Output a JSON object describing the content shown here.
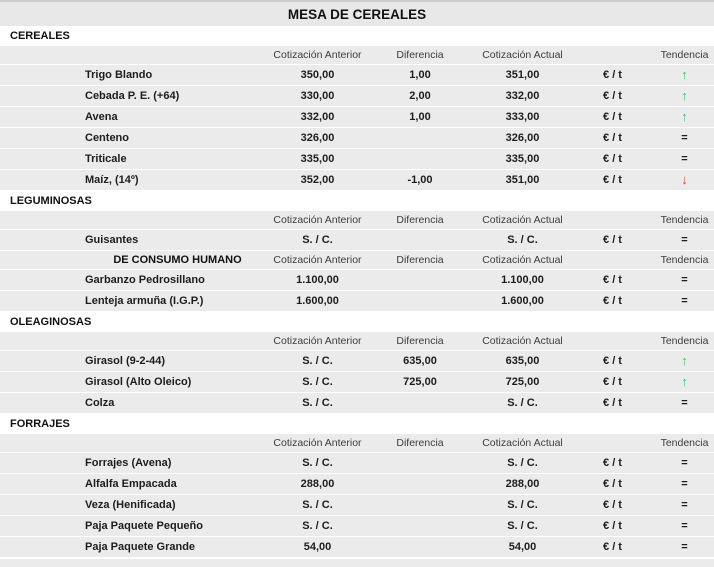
{
  "title": "MESA DE CEREALES",
  "columns": {
    "anterior": "Cotización Anterior",
    "diferencia": "Diferencia",
    "actual": "Cotización Actual",
    "unit": "",
    "tendencia": "Tendencia"
  },
  "unit_label": "€ / t",
  "trend_glyphs": {
    "up": "↑",
    "down": "↓",
    "eq": "="
  },
  "colors": {
    "trend_up": "#2ecc71",
    "trend_down": "#e2483d",
    "row_background": "#ebebeb",
    "title_background": "#e8e8e8"
  },
  "sections": [
    {
      "label": "CEREALES",
      "blocks": [
        {
          "sub_label": "",
          "rows": [
            {
              "name": "Trigo Blando",
              "anterior": "350,00",
              "diferencia": "1,00",
              "actual": "351,00",
              "unit": "€ / t",
              "trend": "up"
            },
            {
              "name": "Cebada P. E. (+64)",
              "anterior": "330,00",
              "diferencia": "2,00",
              "actual": "332,00",
              "unit": "€ / t",
              "trend": "up"
            },
            {
              "name": "Avena",
              "anterior": "332,00",
              "diferencia": "1,00",
              "actual": "333,00",
              "unit": "€ / t",
              "trend": "up"
            },
            {
              "name": "Centeno",
              "anterior": "326,00",
              "diferencia": "",
              "actual": "326,00",
              "unit": "€ / t",
              "trend": "eq"
            },
            {
              "name": "Triticale",
              "anterior": "335,00",
              "diferencia": "",
              "actual": "335,00",
              "unit": "€ / t",
              "trend": "eq"
            },
            {
              "name": "Maíz, (14º)",
              "anterior": "352,00",
              "diferencia": "-1,00",
              "actual": "351,00",
              "unit": "€ / t",
              "trend": "down"
            }
          ]
        }
      ]
    },
    {
      "label": "LEGUMINOSAS",
      "blocks": [
        {
          "sub_label": "",
          "rows": [
            {
              "name": "Guisantes",
              "anterior": "S. / C.",
              "diferencia": "",
              "actual": "S. / C.",
              "unit": "€ / t",
              "trend": "eq"
            }
          ]
        },
        {
          "sub_label": "DE CONSUMO HUMANO",
          "rows": [
            {
              "name": "Garbanzo Pedrosillano",
              "anterior": "1.100,00",
              "diferencia": "",
              "actual": "1.100,00",
              "unit": "€ / t",
              "trend": "eq"
            },
            {
              "name": "Lenteja armuña (I.G.P.)",
              "anterior": "1.600,00",
              "diferencia": "",
              "actual": "1.600,00",
              "unit": "€ / t",
              "trend": "eq"
            }
          ]
        }
      ]
    },
    {
      "label": "OLEAGINOSAS",
      "blocks": [
        {
          "sub_label": "",
          "rows": [
            {
              "name": "Girasol (9-2-44)",
              "anterior": "S. / C.",
              "diferencia": "635,00",
              "actual": "635,00",
              "unit": "€ / t",
              "trend": "up"
            },
            {
              "name": "Girasol (Alto Oleico)",
              "anterior": "S. / C.",
              "diferencia": "725,00",
              "actual": "725,00",
              "unit": "€ / t",
              "trend": "up"
            },
            {
              "name": "Colza",
              "anterior": "S. / C.",
              "diferencia": "",
              "actual": "S. / C.",
              "unit": "€ / t",
              "trend": "eq"
            }
          ]
        }
      ]
    },
    {
      "label": "FORRAJES",
      "blocks": [
        {
          "sub_label": "",
          "rows": [
            {
              "name": "Forrajes (Avena)",
              "anterior": "S. / C.",
              "diferencia": "",
              "actual": "S. / C.",
              "unit": "€ / t",
              "trend": "eq"
            },
            {
              "name": "Alfalfa Empacada",
              "anterior": "288,00",
              "diferencia": "",
              "actual": "288,00",
              "unit": "€ / t",
              "trend": "eq"
            },
            {
              "name": "Veza (Henificada)",
              "anterior": "S. / C.",
              "diferencia": "",
              "actual": "S. / C.",
              "unit": "€ / t",
              "trend": "eq"
            },
            {
              "name": "Paja Paquete Pequeño",
              "anterior": "S. / C.",
              "diferencia": "",
              "actual": "S. / C.",
              "unit": "€ / t",
              "trend": "eq"
            },
            {
              "name": "Paja Paquete Grande",
              "anterior": "54,00",
              "diferencia": "",
              "actual": "54,00",
              "unit": "€ / t",
              "trend": "eq"
            }
          ]
        }
      ]
    }
  ]
}
